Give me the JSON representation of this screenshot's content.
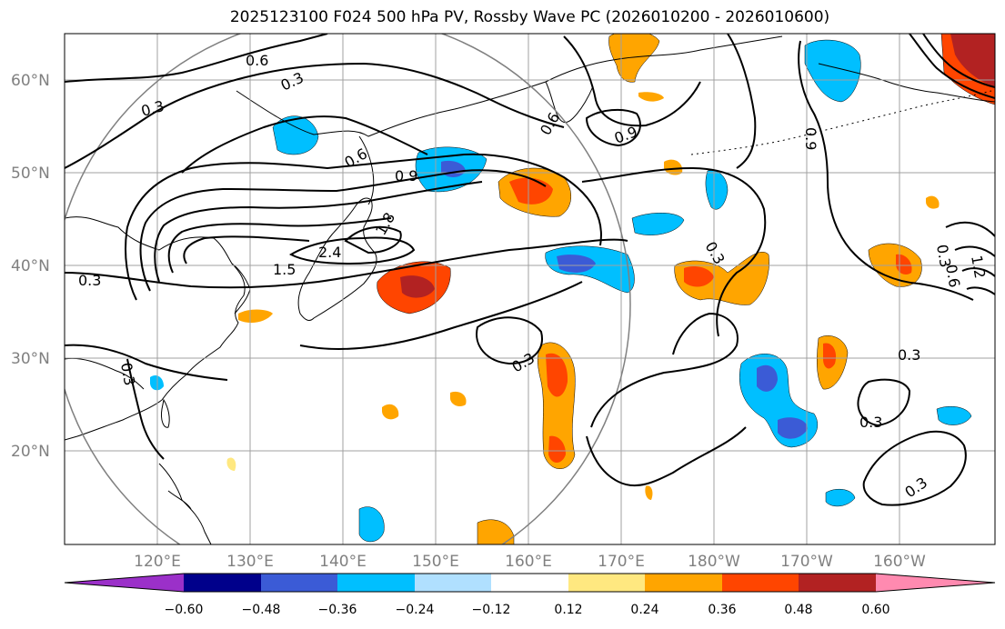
{
  "title": "2025123100 F024 500 hPa PV, Rossby Wave PC (2026010200 - 2026010600)",
  "lat_labels": [
    "60°N",
    "50°N",
    "40°N",
    "30°N",
    "20°N"
  ],
  "lon_labels": [
    "120°E",
    "130°E",
    "140°E",
    "150°E",
    "160°E",
    "170°E",
    "180°W",
    "170°W",
    "160°W"
  ],
  "colorbar": {
    "ticks": [
      "−0.60",
      "−0.48",
      "−0.36",
      "−0.24",
      "−0.12",
      "0.12",
      "0.24",
      "0.36",
      "0.48",
      "0.60"
    ],
    "colors": [
      "#9b30c9",
      "#00008b",
      "#3b5bd6",
      "#00bfff",
      "#b0e0ff",
      "#ffffff",
      "#ffe880",
      "#ffa500",
      "#ff4500",
      "#b22222",
      "#ff8ab0"
    ]
  },
  "contour_labels": {
    "c1": "0.6",
    "c2": "0.3",
    "c3": "0.3",
    "c4": "0.6",
    "c5": "0.9",
    "c6": "2.4",
    "c7": "1.8",
    "c8": "1.5",
    "c9": "0.3",
    "c10": "0.3",
    "c11": "0.6",
    "c12": "0.9",
    "c13": "0.3",
    "c14": "0.3",
    "c15": "0.3",
    "c16": "0.3",
    "c17": "0.3",
    "c18": "0.9",
    "c19": "0.3",
    "c20": "0.6",
    "c21": "1.2"
  }
}
